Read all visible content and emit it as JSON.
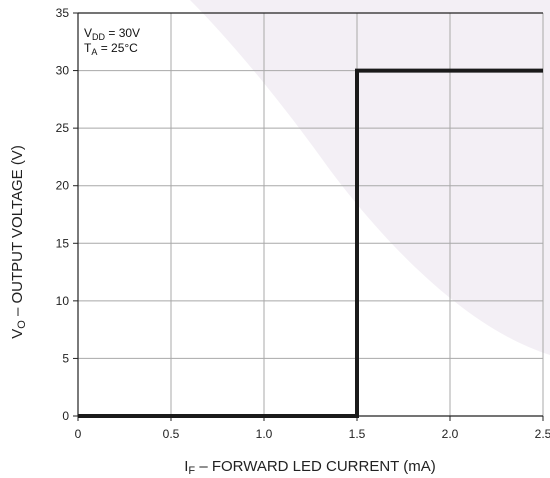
{
  "chart_data": {
    "type": "line",
    "x_axis": {
      "label_main": "I",
      "label_sub": "F",
      "label_rest": " – FORWARD LED CURRENT (mA)",
      "range": [
        0,
        2.5
      ],
      "ticks": [
        0,
        0.5,
        1.0,
        1.5,
        2.0,
        2.5
      ],
      "tick_labels": [
        "0",
        "0.5",
        "1.0",
        "1.5",
        "2.0",
        "2.5"
      ]
    },
    "y_axis": {
      "label_main": "V",
      "label_sub": "O",
      "label_rest": " – OUTPUT VOLTAGE (V)",
      "range": [
        0,
        35
      ],
      "ticks": [
        0,
        5,
        10,
        15,
        20,
        25,
        30,
        35
      ],
      "tick_labels": [
        "0",
        "5",
        "10",
        "15",
        "20",
        "25",
        "30",
        "35"
      ]
    },
    "grid": true,
    "series": [
      {
        "x": [
          0,
          1.5,
          1.5,
          2.5
        ],
        "y": [
          0,
          0,
          30,
          30
        ],
        "color": "#1a1a1a"
      }
    ],
    "conditions": [
      {
        "main": "V",
        "sub": "DD",
        "rest": " = 30V"
      },
      {
        "main": "T",
        "sub": "A",
        "rest": " = 25°C"
      }
    ],
    "colors": {
      "line": "#1a1a1a",
      "grid": "#a8a8a8",
      "frame": "#222222",
      "watermark": "#f3eff5"
    }
  }
}
